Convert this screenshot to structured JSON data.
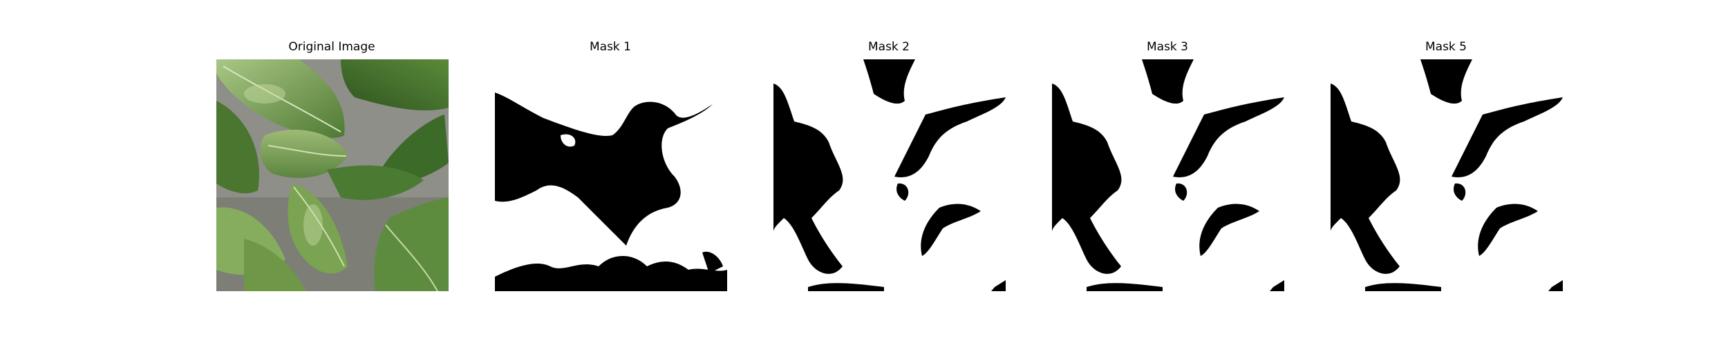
{
  "panels": [
    {
      "title": "Original Image",
      "kind": "photo",
      "subject": "leaf-photo"
    },
    {
      "title": "Mask 1",
      "kind": "mask"
    },
    {
      "title": "Mask 2",
      "kind": "mask"
    },
    {
      "title": "Mask 3",
      "kind": "mask"
    },
    {
      "title": "Mask 5",
      "kind": "mask"
    }
  ],
  "colors": {
    "background": "#ffffff",
    "mask_foreground": "#000000",
    "mask_background": "#ffffff",
    "leaf_dark": "#3f6b2a",
    "leaf_mid": "#6f9a4c",
    "leaf_light": "#b5cf8f",
    "ground": "#8c8c86"
  }
}
